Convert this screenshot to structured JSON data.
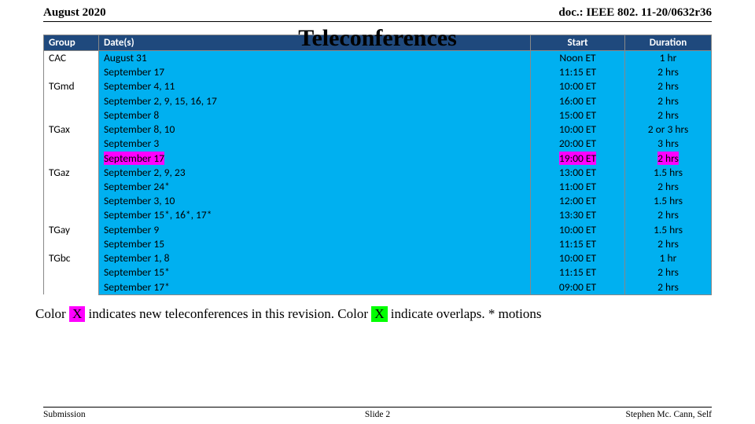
{
  "header": {
    "left": "August 2020",
    "right": "doc.: IEEE 802. 11-20/0632r36"
  },
  "title": "Teleconferences",
  "columns": {
    "group": "Group",
    "dates": "Date(s)",
    "start": "Start",
    "duration": "Duration"
  },
  "colors": {
    "header_bg": "#1f497d",
    "cell_bg": "#00b0f0",
    "magenta": "#ff00ff",
    "green": "#00ff00"
  },
  "rows": [
    {
      "group": "CAC",
      "items": [
        {
          "date": "August 31",
          "start": "Noon ET",
          "dur": "1 hr"
        },
        {
          "date": "September 17",
          "start": "11:15 ET",
          "dur": "2 hrs"
        }
      ]
    },
    {
      "group": "TGmd",
      "items": [
        {
          "date": "September 4, 11",
          "start": "10:00 ET",
          "dur": "2 hrs"
        },
        {
          "date": "September 2, 9, 15, 16, 17",
          "start": "16:00 ET",
          "dur": "2 hrs"
        },
        {
          "date": "September 8",
          "start": "15:00 ET",
          "dur": "2 hrs"
        }
      ]
    },
    {
      "group": "TGax",
      "items": [
        {
          "date": "September 8, 10",
          "start": "10:00 ET",
          "dur": "2 or 3 hrs"
        },
        {
          "date": "September 3",
          "start": "20:00 ET",
          "dur": "3 hrs"
        },
        {
          "date": "September 17",
          "start": "19:00 ET",
          "dur": "2 hrs",
          "hl": "m"
        }
      ]
    },
    {
      "group": "TGaz",
      "items": [
        {
          "date": "September 2, 9, 23",
          "start": "13:00 ET",
          "dur": "1.5 hrs"
        },
        {
          "date": "September 24*",
          "start": "11:00 ET",
          "dur": "2 hrs"
        },
        {
          "date": "September 3, 10",
          "start": "12:00 ET",
          "dur": "1.5 hrs"
        },
        {
          "date": "September 15*, 16*, 17*",
          "start": "13:30 ET",
          "dur": "2 hrs"
        }
      ]
    },
    {
      "group": "TGay",
      "items": [
        {
          "date": "September 9",
          "start": "10:00 ET",
          "dur": "1.5 hrs"
        },
        {
          "date": "September 15",
          "start": "11:15 ET",
          "dur": "2 hrs"
        }
      ]
    },
    {
      "group": "TGbc",
      "items": [
        {
          "date": "September 1, 8",
          "start": "10:00 ET",
          "dur": "1 hr"
        },
        {
          "date": "September 15*",
          "start": "11:15 ET",
          "dur": "2 hrs"
        },
        {
          "date": "September 17*",
          "start": "09:00 ET",
          "dur": "2 hrs"
        }
      ]
    }
  ],
  "caption": {
    "p1a": "Color ",
    "p1b": "X",
    "p1c": " indicates new teleconferences in this revision. Color ",
    "p2b": "X",
    "p2c": " indicate overlaps. * motions"
  },
  "footer": {
    "left": "Submission",
    "mid": "Slide 2",
    "right": "Stephen Mc. Cann, Self"
  }
}
